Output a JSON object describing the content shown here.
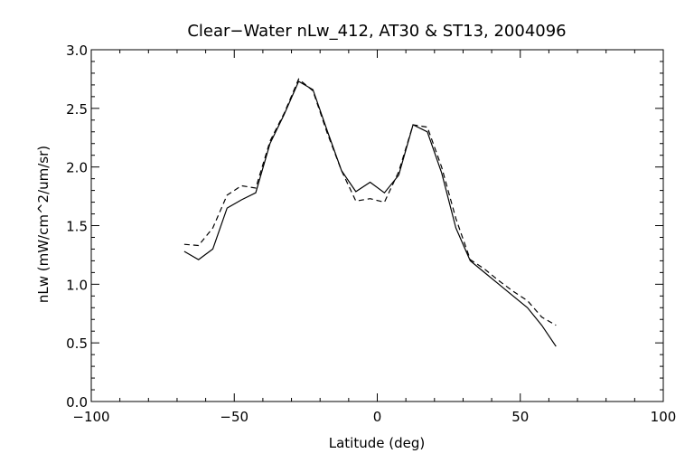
{
  "chart_data": {
    "type": "line",
    "title": "Clear−Water nLw_412, AT30 & ST13, 2004096",
    "xlabel": "Latitude (deg)",
    "ylabel": "nLw (mW/cm^2/um/sr)",
    "xlim": [
      -100,
      100
    ],
    "ylim": [
      0.0,
      3.0
    ],
    "x_ticks": [
      -100,
      -50,
      0,
      50,
      100
    ],
    "x_tick_labels": [
      "−100",
      "−50",
      "0",
      "50",
      "100"
    ],
    "y_ticks": [
      0.0,
      0.5,
      1.0,
      1.5,
      2.0,
      2.5,
      3.0
    ],
    "y_tick_labels": [
      "0.0",
      "0.5",
      "1.0",
      "1.5",
      "2.0",
      "2.5",
      "3.0"
    ],
    "grid": false,
    "series": [
      {
        "style": "solid",
        "x": [
          -67.5,
          -62.5,
          -57.5,
          -52.5,
          -47.5,
          -42.5,
          -37.5,
          -32.5,
          -27.5,
          -22.5,
          -17.5,
          -12.5,
          -7.5,
          -2.5,
          2.5,
          7.5,
          12.5,
          17.5,
          22.5,
          27.5,
          32.5,
          37.5,
          42.5,
          47.5,
          52.5,
          57.5,
          62.5
        ],
        "y": [
          1.28,
          1.21,
          1.3,
          1.65,
          1.72,
          1.78,
          2.2,
          2.45,
          2.73,
          2.66,
          2.31,
          1.97,
          1.79,
          1.87,
          1.78,
          1.93,
          2.36,
          2.3,
          1.95,
          1.48,
          1.2,
          1.1,
          1.0,
          0.9,
          0.8,
          0.65,
          0.47
        ]
      },
      {
        "style": "dashed",
        "x": [
          -67.5,
          -62.5,
          -57.5,
          -52.5,
          -47.5,
          -42.5,
          -37.5,
          -32.5,
          -27.5,
          -22.5,
          -17.5,
          -12.5,
          -7.5,
          -2.5,
          2.5,
          7.5,
          12.5,
          17.5,
          22.5,
          27.5,
          32.5,
          37.5,
          42.5,
          47.5,
          52.5,
          57.5,
          62.5
        ],
        "y": [
          1.34,
          1.33,
          1.48,
          1.76,
          1.84,
          1.82,
          2.22,
          2.46,
          2.75,
          2.65,
          2.29,
          1.97,
          1.71,
          1.73,
          1.7,
          1.96,
          2.36,
          2.34,
          2.0,
          1.56,
          1.21,
          1.13,
          1.03,
          0.94,
          0.86,
          0.72,
          0.65
        ]
      }
    ]
  }
}
